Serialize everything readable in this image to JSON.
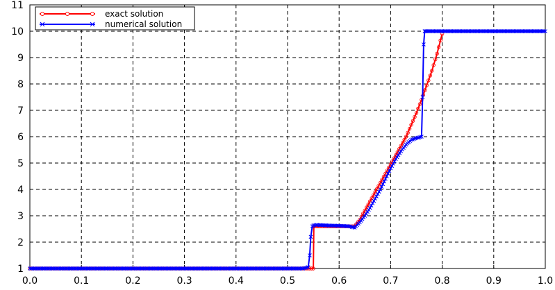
{
  "chart_data": {
    "type": "line",
    "title": "",
    "xlabel": "",
    "ylabel": "",
    "xlim": [
      0.0,
      1.0
    ],
    "ylim": [
      1,
      11
    ],
    "xticks": [
      "0.0",
      "0.1",
      "0.2",
      "0.3",
      "0.4",
      "0.5",
      "0.6",
      "0.7",
      "0.8",
      "0.9",
      "1.0"
    ],
    "yticks": [
      "1",
      "2",
      "3",
      "4",
      "5",
      "6",
      "7",
      "8",
      "9",
      "10",
      "11"
    ],
    "grid": true,
    "legend_position": "top-left",
    "series": [
      {
        "name": "exact solution",
        "color": "#ff0000",
        "marker": "circle",
        "x": [
          0.0,
          0.55,
          0.551,
          0.63,
          0.64,
          0.65,
          0.66,
          0.67,
          0.68,
          0.69,
          0.7,
          0.71,
          0.72,
          0.73,
          0.74,
          0.75,
          0.76,
          0.77,
          0.78,
          0.79,
          0.8
        ],
        "y": [
          1.0,
          1.0,
          2.6,
          2.6,
          2.85,
          3.2,
          3.55,
          3.9,
          4.25,
          4.6,
          4.95,
          5.3,
          5.65,
          6.0,
          6.45,
          6.9,
          7.4,
          7.95,
          8.5,
          9.15,
          9.9
        ]
      },
      {
        "name": "numerical solution",
        "color": "#0000ff",
        "marker": "x",
        "x": [
          0.0,
          0.53,
          0.54,
          0.543,
          0.545,
          0.548,
          0.552,
          0.56,
          0.58,
          0.6,
          0.62,
          0.63,
          0.64,
          0.65,
          0.66,
          0.67,
          0.68,
          0.69,
          0.7,
          0.71,
          0.72,
          0.73,
          0.74,
          0.75,
          0.755,
          0.76,
          0.762,
          0.764,
          0.766,
          0.77,
          0.8,
          0.9,
          1.0
        ],
        "y": [
          1.0,
          1.0,
          1.05,
          1.5,
          2.2,
          2.6,
          2.65,
          2.65,
          2.63,
          2.62,
          2.6,
          2.55,
          2.75,
          3.0,
          3.3,
          3.65,
          4.0,
          4.4,
          4.8,
          5.15,
          5.45,
          5.7,
          5.88,
          5.95,
          5.97,
          6.0,
          7.5,
          9.5,
          10.0,
          10.0,
          10.0,
          10.0,
          10.0
        ]
      }
    ]
  }
}
